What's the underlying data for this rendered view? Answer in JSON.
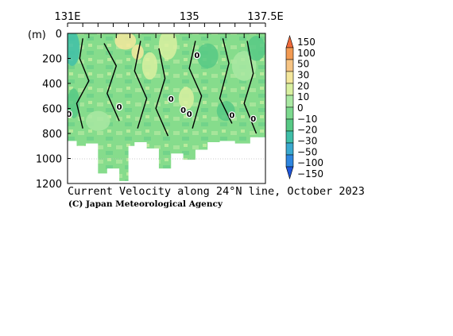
{
  "chart_data": {
    "type": "heatmap",
    "title": "Current Velocity along 24°N line, October 2023",
    "credit": "(C) Japan Meteorological Agency",
    "x_ticks": [
      "131E",
      "135",
      "137.5E"
    ],
    "x_tick_values": [
      131,
      135,
      137.5
    ],
    "xlim": [
      131,
      137.5
    ],
    "ylabel": "(m)",
    "y_ticks": [
      "0",
      "200",
      "400",
      "600",
      "800",
      "1000",
      "1200"
    ],
    "y_tick_values": [
      0,
      200,
      400,
      600,
      800,
      1000,
      1200
    ],
    "ylim": [
      0,
      1200
    ],
    "colorbar_labels": [
      "150",
      "100",
      "50",
      "30",
      "20",
      "10",
      "0",
      "−10",
      "−20",
      "−30",
      "−50",
      "−100",
      "−150"
    ],
    "colorbar_colors": [
      "#f06a3a",
      "#f29a52",
      "#f6c483",
      "#f4e79c",
      "#d9f0a0",
      "#a9e8a2",
      "#7cd98e",
      "#57c985",
      "#3fbfa8",
      "#3aa9cf",
      "#2e86df",
      "#1e55d8"
    ],
    "contour_labels": [
      "0",
      "0",
      "0",
      "0",
      "0",
      "0",
      "0",
      "0"
    ],
    "dominant_range": "0 to 10",
    "data_bottom_profile": [
      {
        "lon": 131.0,
        "depth": 840
      },
      {
        "lon": 131.3,
        "depth": 860
      },
      {
        "lon": 131.6,
        "depth": 900
      },
      {
        "lon": 132.0,
        "depth": 880
      },
      {
        "lon": 132.3,
        "depth": 1120
      },
      {
        "lon": 132.7,
        "depth": 1080
      },
      {
        "lon": 133.0,
        "depth": 1180
      },
      {
        "lon": 133.2,
        "depth": 900
      },
      {
        "lon": 133.6,
        "depth": 870
      },
      {
        "lon": 134.0,
        "depth": 920
      },
      {
        "lon": 134.4,
        "depth": 1080
      },
      {
        "lon": 134.8,
        "depth": 960
      },
      {
        "lon": 135.2,
        "depth": 1010
      },
      {
        "lon": 135.6,
        "depth": 930
      },
      {
        "lon": 136.0,
        "depth": 870
      },
      {
        "lon": 136.5,
        "depth": 860
      },
      {
        "lon": 137.0,
        "depth": 880
      },
      {
        "lon": 137.5,
        "depth": 830
      }
    ]
  }
}
